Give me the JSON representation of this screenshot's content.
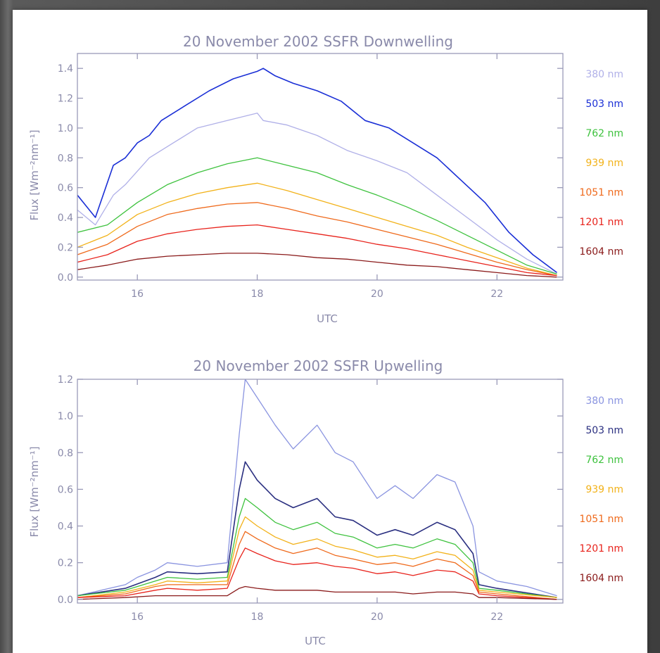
{
  "chart_data": [
    {
      "type": "line",
      "title": "20 November 2002 SSFR Downwelling",
      "xlabel": "UTC",
      "ylabel": "Flux [Wm⁻²nm⁻¹]",
      "xlim": [
        15.0,
        23.1
      ],
      "ylim": [
        -0.02,
        1.5
      ],
      "xticks": [
        16,
        18,
        20,
        22
      ],
      "yticks": [
        0.0,
        0.2,
        0.4,
        0.6,
        0.8,
        1.0,
        1.2,
        1.4
      ],
      "xtick_labels": [
        "16",
        "18",
        "20",
        "22"
      ],
      "ytick_labels": [
        "0.0",
        "0.2",
        "0.4",
        "0.6",
        "0.8",
        "1.0",
        "1.2",
        "1.4"
      ],
      "legend_position": "right",
      "series": [
        {
          "name": "380 nm",
          "color": "#b0b0e8",
          "x": [
            15.0,
            15.3,
            15.6,
            15.8,
            16.2,
            16.6,
            17.0,
            17.5,
            18.0,
            18.1,
            18.5,
            19.0,
            19.5,
            20.0,
            20.5,
            21.0,
            21.5,
            22.0,
            22.5,
            23.0
          ],
          "y": [
            0.45,
            0.35,
            0.55,
            0.62,
            0.8,
            0.9,
            1.0,
            1.05,
            1.1,
            1.05,
            1.02,
            0.95,
            0.85,
            0.78,
            0.7,
            0.55,
            0.4,
            0.25,
            0.12,
            0.02
          ]
        },
        {
          "name": "503 nm",
          "color": "#1a2fd6",
          "x": [
            15.0,
            15.3,
            15.6,
            15.8,
            16.0,
            16.2,
            16.4,
            16.8,
            17.2,
            17.6,
            18.0,
            18.1,
            18.3,
            18.6,
            19.0,
            19.4,
            19.8,
            20.2,
            20.6,
            21.0,
            21.4,
            21.8,
            22.2,
            22.6,
            23.0
          ],
          "y": [
            0.55,
            0.4,
            0.75,
            0.8,
            0.9,
            0.95,
            1.05,
            1.15,
            1.25,
            1.33,
            1.38,
            1.4,
            1.35,
            1.3,
            1.25,
            1.18,
            1.05,
            1.0,
            0.9,
            0.8,
            0.65,
            0.5,
            0.3,
            0.15,
            0.03
          ]
        },
        {
          "name": "762 nm",
          "color": "#3ec23e",
          "x": [
            15.0,
            15.5,
            16.0,
            16.5,
            17.0,
            17.5,
            18.0,
            18.5,
            19.0,
            19.5,
            20.0,
            20.5,
            21.0,
            21.5,
            22.0,
            22.5,
            23.0
          ],
          "y": [
            0.3,
            0.35,
            0.5,
            0.62,
            0.7,
            0.76,
            0.8,
            0.75,
            0.7,
            0.62,
            0.55,
            0.47,
            0.38,
            0.28,
            0.18,
            0.08,
            0.02
          ]
        },
        {
          "name": "939 nm",
          "color": "#f2b21a",
          "x": [
            15.0,
            15.5,
            16.0,
            16.5,
            17.0,
            17.5,
            18.0,
            18.5,
            19.0,
            19.5,
            20.0,
            20.5,
            21.0,
            21.5,
            22.0,
            22.5,
            23.0
          ],
          "y": [
            0.2,
            0.28,
            0.42,
            0.5,
            0.56,
            0.6,
            0.63,
            0.58,
            0.52,
            0.46,
            0.4,
            0.34,
            0.28,
            0.2,
            0.13,
            0.06,
            0.01
          ]
        },
        {
          "name": "1051 nm",
          "color": "#ef6a1c",
          "x": [
            15.0,
            15.5,
            16.0,
            16.5,
            17.0,
            17.5,
            18.0,
            18.5,
            19.0,
            19.5,
            20.0,
            20.5,
            21.0,
            21.5,
            22.0,
            22.5,
            23.0
          ],
          "y": [
            0.15,
            0.22,
            0.34,
            0.42,
            0.46,
            0.49,
            0.5,
            0.46,
            0.41,
            0.37,
            0.32,
            0.27,
            0.22,
            0.16,
            0.1,
            0.05,
            0.01
          ]
        },
        {
          "name": "1201 nm",
          "color": "#e8231c",
          "x": [
            15.0,
            15.5,
            16.0,
            16.5,
            17.0,
            17.5,
            18.0,
            18.5,
            19.0,
            19.5,
            20.0,
            20.5,
            21.0,
            21.5,
            22.0,
            22.5,
            23.0
          ],
          "y": [
            0.1,
            0.15,
            0.24,
            0.29,
            0.32,
            0.34,
            0.35,
            0.32,
            0.29,
            0.26,
            0.22,
            0.19,
            0.15,
            0.11,
            0.07,
            0.03,
            0.01
          ]
        },
        {
          "name": "1604 nm",
          "color": "#8a1a1a",
          "x": [
            15.0,
            15.5,
            16.0,
            16.5,
            17.0,
            17.5,
            18.0,
            18.5,
            19.0,
            19.5,
            20.0,
            20.5,
            21.0,
            21.5,
            22.0,
            22.5,
            23.0
          ],
          "y": [
            0.05,
            0.08,
            0.12,
            0.14,
            0.15,
            0.16,
            0.16,
            0.15,
            0.13,
            0.12,
            0.1,
            0.08,
            0.07,
            0.05,
            0.03,
            0.01,
            0.0
          ]
        }
      ]
    },
    {
      "type": "line",
      "title": "20 November 2002 SSFR Upwelling",
      "xlabel": "UTC",
      "ylabel": "Flux [Wm⁻²nm⁻¹]",
      "xlim": [
        15.0,
        23.1
      ],
      "ylim": [
        -0.02,
        1.2
      ],
      "xticks": [
        16,
        18,
        20,
        22
      ],
      "yticks": [
        0.0,
        0.2,
        0.4,
        0.6,
        0.8,
        1.0,
        1.2
      ],
      "xtick_labels": [
        "16",
        "18",
        "20",
        "22"
      ],
      "ytick_labels": [
        "0.0",
        "0.2",
        "0.4",
        "0.6",
        "0.8",
        "1.0",
        "1.2"
      ],
      "legend_position": "right",
      "series": [
        {
          "name": "380 nm",
          "color": "#8a94e0",
          "x": [
            15.0,
            15.8,
            16.0,
            16.3,
            16.5,
            17.0,
            17.5,
            17.7,
            17.8,
            18.0,
            18.3,
            18.6,
            19.0,
            19.3,
            19.6,
            20.0,
            20.3,
            20.6,
            21.0,
            21.3,
            21.6,
            21.7,
            22.0,
            22.5,
            23.0
          ],
          "y": [
            0.02,
            0.08,
            0.12,
            0.16,
            0.2,
            0.18,
            0.2,
            0.9,
            1.2,
            1.1,
            0.95,
            0.82,
            0.95,
            0.8,
            0.75,
            0.55,
            0.62,
            0.55,
            0.68,
            0.64,
            0.4,
            0.15,
            0.1,
            0.07,
            0.02
          ]
        },
        {
          "name": "503 nm",
          "color": "#2a2f80",
          "x": [
            15.0,
            15.8,
            16.3,
            16.5,
            17.0,
            17.5,
            17.7,
            17.8,
            18.0,
            18.3,
            18.6,
            19.0,
            19.3,
            19.6,
            20.0,
            20.3,
            20.6,
            21.0,
            21.3,
            21.6,
            21.7,
            22.0,
            23.0
          ],
          "y": [
            0.02,
            0.06,
            0.12,
            0.15,
            0.14,
            0.15,
            0.6,
            0.75,
            0.65,
            0.55,
            0.5,
            0.55,
            0.45,
            0.43,
            0.35,
            0.38,
            0.35,
            0.42,
            0.38,
            0.25,
            0.08,
            0.06,
            0.01
          ]
        },
        {
          "name": "762 nm",
          "color": "#3ec23e",
          "x": [
            15.0,
            15.8,
            16.3,
            16.5,
            17.0,
            17.5,
            17.7,
            17.8,
            18.0,
            18.3,
            18.6,
            19.0,
            19.3,
            19.6,
            20.0,
            20.3,
            20.6,
            21.0,
            21.3,
            21.6,
            21.7,
            22.0,
            23.0
          ],
          "y": [
            0.02,
            0.05,
            0.1,
            0.12,
            0.11,
            0.12,
            0.45,
            0.55,
            0.5,
            0.42,
            0.38,
            0.42,
            0.36,
            0.34,
            0.28,
            0.3,
            0.28,
            0.33,
            0.3,
            0.2,
            0.06,
            0.05,
            0.01
          ]
        },
        {
          "name": "939 nm",
          "color": "#f2b21a",
          "x": [
            15.0,
            15.8,
            16.3,
            16.5,
            17.0,
            17.5,
            17.7,
            17.8,
            18.0,
            18.3,
            18.6,
            19.0,
            19.3,
            19.6,
            20.0,
            20.3,
            20.6,
            21.0,
            21.3,
            21.6,
            21.7,
            22.0,
            23.0
          ],
          "y": [
            0.01,
            0.04,
            0.08,
            0.1,
            0.09,
            0.1,
            0.38,
            0.45,
            0.4,
            0.34,
            0.3,
            0.33,
            0.29,
            0.27,
            0.23,
            0.24,
            0.22,
            0.26,
            0.24,
            0.16,
            0.05,
            0.04,
            0.01
          ]
        },
        {
          "name": "1051 nm",
          "color": "#ef6a1c",
          "x": [
            15.0,
            15.8,
            16.3,
            16.5,
            17.0,
            17.5,
            17.7,
            17.8,
            18.0,
            18.3,
            18.6,
            19.0,
            19.3,
            19.6,
            20.0,
            20.3,
            20.6,
            21.0,
            21.3,
            21.6,
            21.7,
            22.0,
            23.0
          ],
          "y": [
            0.01,
            0.03,
            0.07,
            0.08,
            0.08,
            0.08,
            0.3,
            0.37,
            0.33,
            0.28,
            0.25,
            0.28,
            0.24,
            0.22,
            0.19,
            0.2,
            0.18,
            0.22,
            0.2,
            0.13,
            0.04,
            0.03,
            0.0
          ]
        },
        {
          "name": "1201 nm",
          "color": "#e8231c",
          "x": [
            15.0,
            15.8,
            16.3,
            16.5,
            17.0,
            17.5,
            17.7,
            17.8,
            18.0,
            18.3,
            18.6,
            19.0,
            19.3,
            19.6,
            20.0,
            20.3,
            20.6,
            21.0,
            21.3,
            21.6,
            21.7,
            22.0,
            23.0
          ],
          "y": [
            0.01,
            0.02,
            0.05,
            0.06,
            0.05,
            0.06,
            0.22,
            0.28,
            0.25,
            0.21,
            0.19,
            0.2,
            0.18,
            0.17,
            0.14,
            0.15,
            0.13,
            0.16,
            0.15,
            0.1,
            0.03,
            0.02,
            0.0
          ]
        },
        {
          "name": "1604 nm",
          "color": "#8a1a1a",
          "x": [
            15.0,
            15.8,
            16.3,
            16.5,
            17.0,
            17.5,
            17.7,
            17.8,
            18.0,
            18.3,
            18.6,
            19.0,
            19.3,
            19.6,
            20.0,
            20.3,
            20.6,
            21.0,
            21.3,
            21.6,
            21.7,
            22.0,
            23.0
          ],
          "y": [
            0.0,
            0.01,
            0.02,
            0.02,
            0.02,
            0.02,
            0.06,
            0.07,
            0.06,
            0.05,
            0.05,
            0.05,
            0.04,
            0.04,
            0.04,
            0.04,
            0.03,
            0.04,
            0.04,
            0.03,
            0.01,
            0.01,
            0.0
          ]
        }
      ]
    }
  ]
}
